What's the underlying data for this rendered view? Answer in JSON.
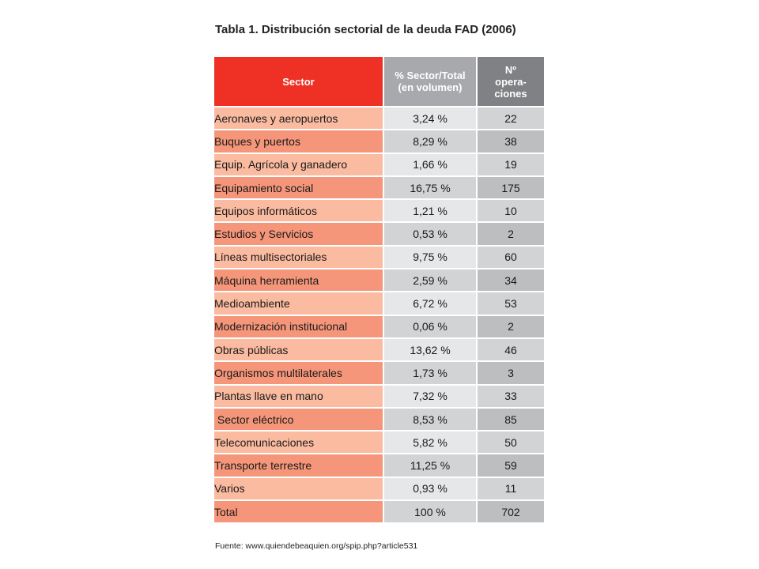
{
  "title": "Tabla 1. Distribución sectorial de la deuda FAD (2006)",
  "table": {
    "headers": {
      "sector": "Sector",
      "pct_line1": "% Sector/Total",
      "pct_line2": "(en volumen)",
      "ops_line1": "Nº",
      "ops_line2": "opera-",
      "ops_line3": "ciones"
    },
    "rows": [
      {
        "sector": "Aeronaves y aeropuertos",
        "pct": "3,24 %",
        "ops": "22"
      },
      {
        "sector": "Buques y puertos",
        "pct": "8,29 %",
        "ops": "38"
      },
      {
        "sector": "Equip. Agrícola y ganadero",
        "pct": "1,66 %",
        "ops": "19"
      },
      {
        "sector": "Equipamiento social",
        "pct": "16,75 %",
        "ops": "175"
      },
      {
        "sector": "Equipos informáticos",
        "pct": "1,21 %",
        "ops": "10"
      },
      {
        "sector": "Estudios y Servicios",
        "pct": "0,53 %",
        "ops": "2"
      },
      {
        "sector": "Líneas multisectoriales",
        "pct": "9,75 %",
        "ops": "60"
      },
      {
        "sector": "Máquina herramienta",
        "pct": "2,59 %",
        "ops": "34"
      },
      {
        "sector": "Medioambiente",
        "pct": "6,72 %",
        "ops": "53"
      },
      {
        "sector": "Modernización institucional",
        "pct": "0,06 %",
        "ops": "2"
      },
      {
        "sector": "Obras públicas",
        "pct": "13,62 %",
        "ops": "46"
      },
      {
        "sector": "Organismos multilaterales",
        "pct": "1,73 %",
        "ops": "3"
      },
      {
        "sector": "Plantas llave en mano",
        "pct": "7,32 %",
        "ops": "33"
      },
      {
        "sector": " Sector eléctrico",
        "pct": "8,53 %",
        "ops": "85"
      },
      {
        "sector": "Telecomunicaciones",
        "pct": "5,82 %",
        "ops": "50"
      },
      {
        "sector": "Transporte terrestre",
        "pct": "11,25 %",
        "ops": "59"
      },
      {
        "sector": "Varios",
        "pct": "0,93 %",
        "ops": "11"
      }
    ],
    "total": {
      "sector": "Total",
      "pct": "100 %",
      "ops": "702"
    }
  },
  "source": "Fuente: www.quiendebeaquien.org/spip.php?article531",
  "colors": {
    "header_sector": "#ee3124",
    "header_pct": "#a7a9ac",
    "header_ops": "#808184",
    "row_light": "#fbbba0",
    "row_dark": "#f5967a"
  }
}
